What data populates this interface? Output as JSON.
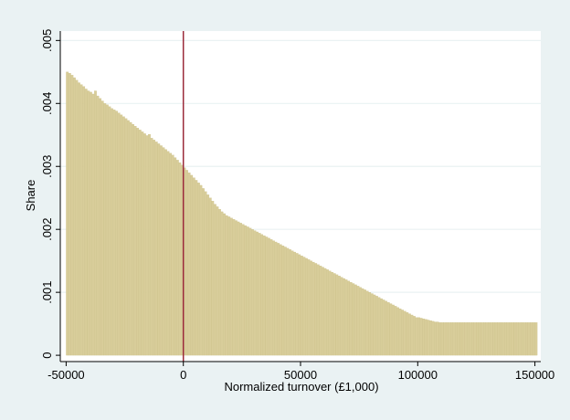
{
  "chart_data": {
    "type": "bar",
    "title": "",
    "xlabel": "Normalized turnover (£1,000)",
    "ylabel": "Share",
    "xlim": [
      -52500,
      152500
    ],
    "ylim": [
      -0.0001,
      0.00515
    ],
    "xticks": [
      -50000,
      0,
      50000,
      100000,
      150000
    ],
    "xtick_labels": [
      "-50000",
      "0",
      "50000",
      "100000",
      "150000"
    ],
    "yticks": [
      0,
      0.001,
      0.002,
      0.003,
      0.004,
      0.005
    ],
    "ytick_labels": [
      "0",
      ".001",
      ".002",
      ".003",
      ".004",
      ".005"
    ],
    "grid": "horizontal",
    "reference_line_x": 0,
    "bin_width": 1000,
    "bin_start": -50000,
    "values": [
      0.0045,
      0.00448,
      0.00445,
      0.00441,
      0.00437,
      0.00433,
      0.0043,
      0.00427,
      0.00423,
      0.0042,
      0.00418,
      0.00415,
      0.0042,
      0.00412,
      0.00408,
      0.00404,
      0.004,
      0.00398,
      0.00395,
      0.00392,
      0.0039,
      0.00388,
      0.00385,
      0.00382,
      0.00379,
      0.00376,
      0.00373,
      0.0037,
      0.00367,
      0.00364,
      0.00361,
      0.00358,
      0.00355,
      0.00352,
      0.00349,
      0.00351,
      0.00345,
      0.00342,
      0.00339,
      0.00336,
      0.00333,
      0.0033,
      0.00327,
      0.00324,
      0.00321,
      0.00318,
      0.00314,
      0.0031,
      0.00306,
      0.00302,
      0.00298,
      0.00294,
      0.0029,
      0.00286,
      0.00282,
      0.00278,
      0.00274,
      0.0027,
      0.00265,
      0.0026,
      0.00255,
      0.0025,
      0.00245,
      0.0024,
      0.00236,
      0.00232,
      0.00228,
      0.00225,
      0.00222,
      0.0022,
      0.00218,
      0.00216,
      0.00214,
      0.00212,
      0.0021,
      0.00208,
      0.00206,
      0.00204,
      0.00202,
      0.002,
      0.00198,
      0.00196,
      0.00194,
      0.00192,
      0.0019,
      0.00188,
      0.00186,
      0.00184,
      0.00182,
      0.0018,
      0.00178,
      0.00176,
      0.00174,
      0.00172,
      0.0017,
      0.00168,
      0.00166,
      0.00164,
      0.00162,
      0.0016,
      0.00158,
      0.00156,
      0.00154,
      0.00152,
      0.0015,
      0.00148,
      0.00146,
      0.00144,
      0.00142,
      0.0014,
      0.00138,
      0.00136,
      0.00134,
      0.00132,
      0.0013,
      0.00128,
      0.00126,
      0.00124,
      0.00122,
      0.0012,
      0.00118,
      0.00116,
      0.00114,
      0.00112,
      0.0011,
      0.00108,
      0.00106,
      0.00104,
      0.00102,
      0.001,
      0.00098,
      0.00096,
      0.00094,
      0.00092,
      0.0009,
      0.00088,
      0.00086,
      0.00084,
      0.00082,
      0.0008,
      0.00078,
      0.00076,
      0.00074,
      0.00072,
      0.0007,
      0.00068,
      0.00066,
      0.00064,
      0.00062,
      0.0006,
      0.0006,
      0.00059,
      0.00058,
      0.00057,
      0.00056,
      0.00055,
      0.00054,
      0.00053,
      0.00053,
      0.00052,
      0.00052,
      0.00052,
      0.00052,
      0.00052,
      0.00052,
      0.00052,
      0.00052,
      0.00052,
      0.00052,
      0.00052,
      0.00052,
      0.00052,
      0.00052,
      0.00052,
      0.00052,
      0.00052,
      0.00052,
      0.00052,
      0.00052,
      0.00052,
      0.00052,
      0.00052,
      0.00052,
      0.00052,
      0.00052,
      0.00052,
      0.00052,
      0.00052,
      0.00052,
      0.00052,
      0.00052,
      0.00052,
      0.00052,
      0.00052,
      0.00052,
      0.00052,
      0.00052,
      0.00052,
      0.00052,
      0.00052,
      0.00052
    ],
    "colors": {
      "outer_background": "#eaf2f3",
      "plot_background": "#ffffff",
      "bar_fill": "#d8cd9a",
      "bar_edge": "#c9bd85",
      "reference_line": "#9b2a3a",
      "gridline": "#eaf2f3",
      "axis": "#000000"
    }
  }
}
